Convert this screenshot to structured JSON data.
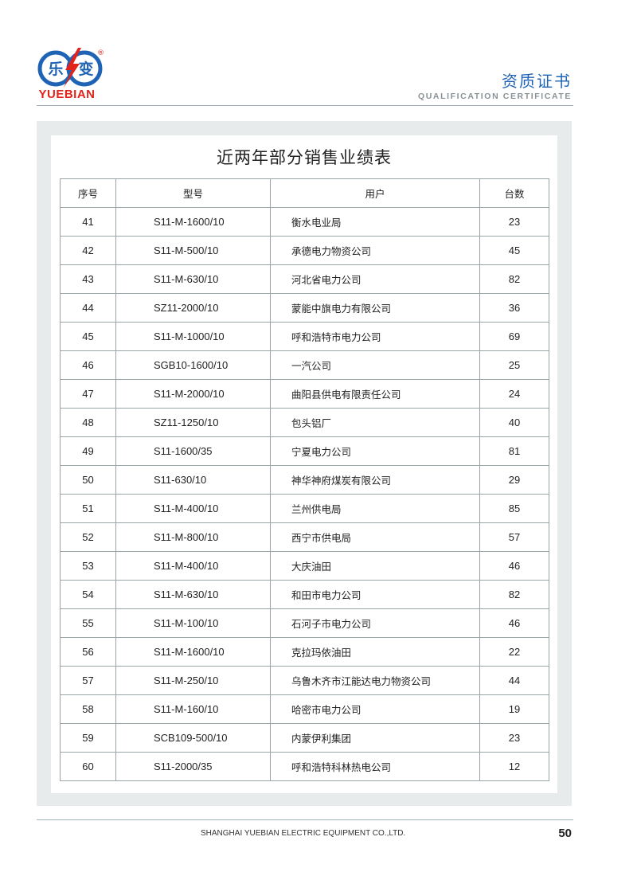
{
  "logo": {
    "text": "YUEBIAN",
    "chars": [
      "乐",
      "变"
    ],
    "registered": "®",
    "brand_blue": "#1f63b5",
    "brand_red": "#e2231a"
  },
  "header": {
    "title_cn": "资质证书",
    "title_en": "QUALIFICATION CERTIFICATE"
  },
  "table": {
    "title": "近两年部分销售业绩表",
    "columns": [
      "序号",
      "型号",
      "用户",
      "台数"
    ],
    "rows": [
      [
        "41",
        "S11-M-1600/10",
        "衡水电业局",
        "23"
      ],
      [
        "42",
        "S11-M-500/10",
        "承德电力物资公司",
        "45"
      ],
      [
        "43",
        "S11-M-630/10",
        "河北省电力公司",
        "82"
      ],
      [
        "44",
        "SZ11-2000/10",
        "蒙能中旗电力有限公司",
        "36"
      ],
      [
        "45",
        "S11-M-1000/10",
        "呼和浩特市电力公司",
        "69"
      ],
      [
        "46",
        "SGB10-1600/10",
        "一汽公司",
        "25"
      ],
      [
        "47",
        "S11-M-2000/10",
        "曲阳县供电有限责任公司",
        "24"
      ],
      [
        "48",
        "SZ11-1250/10",
        "包头铝厂",
        "40"
      ],
      [
        "49",
        "S11-1600/35",
        "宁夏电力公司",
        "81"
      ],
      [
        "50",
        "S11-630/10",
        "神华神府煤炭有限公司",
        "29"
      ],
      [
        "51",
        "S11-M-400/10",
        "兰州供电局",
        "85"
      ],
      [
        "52",
        "S11-M-800/10",
        "西宁市供电局",
        "57"
      ],
      [
        "53",
        "S11-M-400/10",
        "大庆油田",
        "46"
      ],
      [
        "54",
        "S11-M-630/10",
        "和田市电力公司",
        "82"
      ],
      [
        "55",
        "S11-M-100/10",
        "石河子市电力公司",
        "46"
      ],
      [
        "56",
        "S11-M-1600/10",
        "克拉玛依油田",
        "22"
      ],
      [
        "57",
        "S11-M-250/10",
        "乌鲁木齐市江能达电力物资公司",
        "44"
      ],
      [
        "58",
        "S11-M-160/10",
        "哈密市电力公司",
        "19"
      ],
      [
        "59",
        "SCB109-500/10",
        "内蒙伊利集团",
        "23"
      ],
      [
        "60",
        "S11-2000/35",
        "呼和浩特科林热电公司",
        "12"
      ]
    ]
  },
  "footer": {
    "company": "SHANGHAI YUEBIAN ELECTRIC EQUIPMENT CO.,LTD.",
    "page_number": "50"
  }
}
